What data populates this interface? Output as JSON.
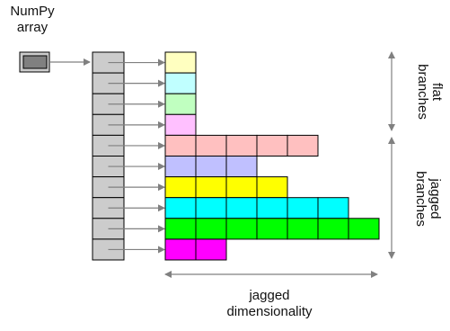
{
  "labels": {
    "numpy_title_line1": "NumPy",
    "numpy_title_line2": "array",
    "flat_line1": "flat",
    "flat_line2": "branches",
    "jagged_line1": "jagged",
    "jagged_line2": "branches",
    "dim_line1": "jagged",
    "dim_line2": "dimensionality"
  },
  "colors": {
    "pointer_cell": "#cccccc",
    "numpy_outer": "#cccccc",
    "numpy_inner": "#808080",
    "arrow": "#808080"
  },
  "rows": [
    {
      "count": 1,
      "color": "#ffffc0"
    },
    {
      "count": 1,
      "color": "#c0ffff"
    },
    {
      "count": 1,
      "color": "#c0ffc0"
    },
    {
      "count": 1,
      "color": "#ffc0ff"
    },
    {
      "count": 5,
      "color": "#ffc0c0"
    },
    {
      "count": 3,
      "color": "#c0c0ff"
    },
    {
      "count": 4,
      "color": "#ffff00"
    },
    {
      "count": 6,
      "color": "#00ffff"
    },
    {
      "count": 7,
      "color": "#00ff00"
    },
    {
      "count": 2,
      "color": "#ff00ff"
    }
  ]
}
